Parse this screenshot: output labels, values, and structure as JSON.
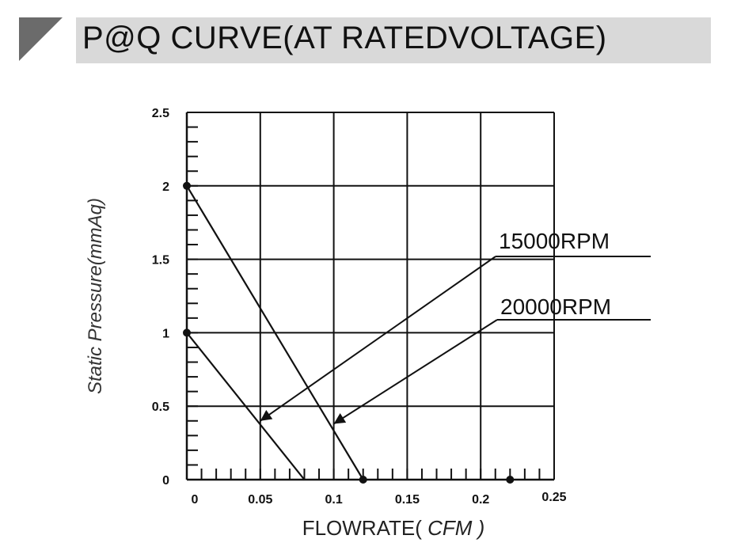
{
  "header": {
    "title": "P@Q CURVE(AT RATEDVOLTAGE)"
  },
  "chart_data": {
    "type": "line",
    "title": "P@Q CURVE(AT RATEDVOLTAGE)",
    "xlabel_main": "FLOWRATE(",
    "xlabel_unit": "CFM",
    "xlabel_close": ")",
    "ylabel": "Static Pressure(mmAq)",
    "xlim": [
      0,
      0.25
    ],
    "ylim": [
      0,
      2.5
    ],
    "x_ticks": [
      "0",
      "0.05",
      "0.1",
      "0.15",
      "0.2",
      "0.25"
    ],
    "y_ticks": [
      "0",
      "0.5",
      "1",
      "1.5",
      "2",
      "2.5"
    ],
    "grid": true,
    "series": [
      {
        "name": "15000RPM",
        "x": [
          0,
          0.08
        ],
        "y": [
          1,
          0
        ]
      },
      {
        "name": "20000RPM",
        "x": [
          0,
          0.12
        ],
        "y": [
          2,
          0
        ]
      }
    ],
    "markers": [
      {
        "x": 0,
        "y": 2
      },
      {
        "x": 0,
        "y": 1
      },
      {
        "x": 0.12,
        "y": 0
      },
      {
        "x": 0.22,
        "y": 0
      }
    ],
    "annotations": [
      {
        "text": "15000RPM",
        "target_x": 0.05,
        "target_y": 0.4
      },
      {
        "text": "20000RPM",
        "target_x": 0.1,
        "target_y": 0.38
      }
    ]
  },
  "colors": {
    "line": "#111111",
    "title_bg": "#d9d9d9",
    "corner": "#6b6b6b"
  }
}
